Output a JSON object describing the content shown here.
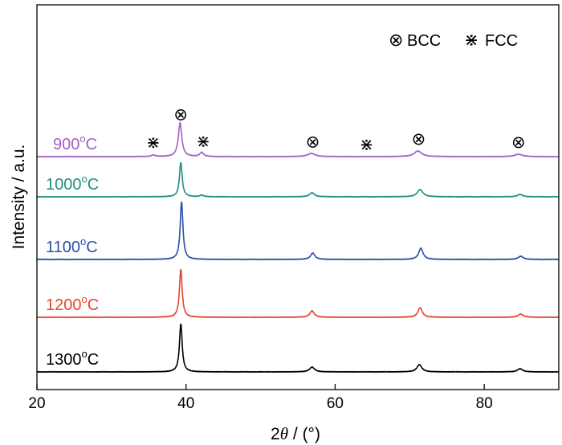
{
  "chart_data": {
    "type": "line",
    "title": "",
    "xlabel_prefix": "2",
    "xlabel_symbol": "θ",
    "xlabel_suffix": " / (°)",
    "ylabel": "Intensity / a.u.",
    "xlim": [
      20,
      90
    ],
    "x_ticks": [
      20,
      40,
      60,
      80
    ],
    "y_ticks": false,
    "grid": false,
    "legend_placement": "top-right",
    "legend": [
      {
        "symbol": "⊗",
        "label": "BCC"
      },
      {
        "symbol": "⋇",
        "label": "FCC"
      }
    ],
    "series": [
      {
        "name": "1300°C",
        "label_num": "1300",
        "label_sup": "o",
        "label_unit": "C",
        "color": "#000000",
        "offset": 0,
        "peaks": [
          [
            39.3,
            60,
            0.22
          ],
          [
            56.9,
            6,
            0.4
          ],
          [
            71.3,
            9,
            0.4
          ],
          [
            84.8,
            4,
            0.4
          ]
        ]
      },
      {
        "name": "1200°C",
        "label_num": "1200",
        "label_sup": "o",
        "label_unit": "C",
        "color": "#e8432a",
        "offset": 68,
        "peaks": [
          [
            39.3,
            60,
            0.22
          ],
          [
            56.9,
            8,
            0.35
          ],
          [
            71.4,
            12,
            0.35
          ],
          [
            84.9,
            4,
            0.4
          ]
        ]
      },
      {
        "name": "1100°C",
        "label_num": "1100",
        "label_sup": "o",
        "label_unit": "C",
        "color": "#2a4ea6",
        "offset": 140,
        "peaks": [
          [
            39.4,
            72,
            0.22
          ],
          [
            57.0,
            8,
            0.35
          ],
          [
            71.5,
            14,
            0.35
          ],
          [
            84.9,
            4,
            0.4
          ]
        ]
      },
      {
        "name": "1000°C",
        "label_num": "1000",
        "label_sup": "o",
        "label_unit": "C",
        "color": "#1f8f80",
        "offset": 218,
        "peaks": [
          [
            39.3,
            43,
            0.22
          ],
          [
            42.1,
            2,
            0.3
          ],
          [
            56.9,
            5,
            0.4
          ],
          [
            71.4,
            9,
            0.45
          ],
          [
            84.8,
            3,
            0.4
          ]
        ]
      },
      {
        "name": "900°C",
        "label_num": "900",
        "label_sup": "o",
        "label_unit": "C",
        "color": "#a45fc7",
        "offset": 268,
        "peaks": [
          [
            39.2,
            42,
            0.28
          ],
          [
            42.1,
            5,
            0.3
          ],
          [
            35.6,
            2,
            0.3
          ],
          [
            56.8,
            4,
            0.6
          ],
          [
            71.1,
            7,
            0.6
          ],
          [
            84.6,
            3,
            0.6
          ]
        ]
      }
    ],
    "annotations": [
      {
        "symbol": "⊗",
        "x": 39.3,
        "phase": "BCC"
      },
      {
        "symbol": "⋇",
        "x": 35.6,
        "phase": "FCC"
      },
      {
        "symbol": "⋇",
        "x": 42.3,
        "phase": "FCC"
      },
      {
        "symbol": "⊗",
        "x": 57.0,
        "phase": "BCC"
      },
      {
        "symbol": "⋇",
        "x": 64.2,
        "phase": "FCC"
      },
      {
        "symbol": "⊗",
        "x": 71.2,
        "phase": "BCC"
      },
      {
        "symbol": "⊗",
        "x": 84.6,
        "phase": "BCC"
      }
    ]
  }
}
